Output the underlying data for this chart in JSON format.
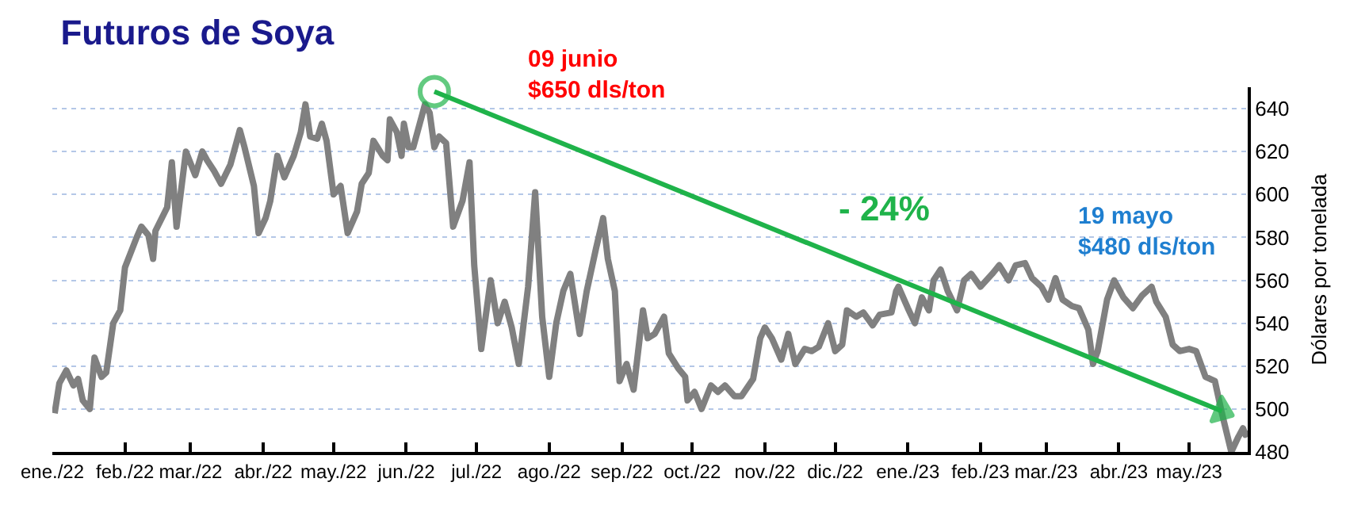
{
  "chart_data": {
    "type": "line",
    "title": "Futuros de Soya",
    "ylabel": "Dólares por tonelada",
    "annotations": [
      "09 junio\n$650 dls/ton",
      "- 24%",
      "19 mayo\n$480 dls/ton"
    ],
    "x": [
      "2022-01-02",
      "2022-01-04",
      "2022-01-07",
      "2022-01-10",
      "2022-01-12",
      "2022-01-14",
      "2022-01-17",
      "2022-01-19",
      "2022-01-22",
      "2022-01-24",
      "2022-01-27",
      "2022-01-30",
      "2022-02-01",
      "2022-02-06",
      "2022-02-08",
      "2022-02-11",
      "2022-02-13",
      "2022-02-14",
      "2022-02-19",
      "2022-02-21",
      "2022-02-23",
      "2022-02-27",
      "2022-03-03",
      "2022-03-06",
      "2022-03-08",
      "2022-03-11",
      "2022-03-14",
      "2022-03-18",
      "2022-03-22",
      "2022-03-24",
      "2022-03-28",
      "2022-03-30",
      "2022-04-02",
      "2022-04-04",
      "2022-04-07",
      "2022-04-10",
      "2022-04-14",
      "2022-04-17",
      "2022-04-19",
      "2022-04-21",
      "2022-04-24",
      "2022-04-26",
      "2022-04-28",
      "2022-05-01",
      "2022-05-04",
      "2022-05-07",
      "2022-05-11",
      "2022-05-13",
      "2022-05-16",
      "2022-05-18",
      "2022-05-22",
      "2022-05-24",
      "2022-05-25",
      "2022-05-28",
      "2022-05-30",
      "2022-05-31",
      "2022-06-02",
      "2022-06-04",
      "2022-06-09",
      "2022-06-11",
      "2022-06-13",
      "2022-06-15",
      "2022-06-18",
      "2022-06-21",
      "2022-06-25",
      "2022-06-28",
      "2022-06-30",
      "2022-07-03",
      "2022-07-07",
      "2022-07-10",
      "2022-07-13",
      "2022-07-16",
      "2022-07-19",
      "2022-07-23",
      "2022-07-26",
      "2022-07-29",
      "2022-08-01",
      "2022-08-04",
      "2022-08-07",
      "2022-08-10",
      "2022-08-14",
      "2022-08-17",
      "2022-08-21",
      "2022-08-24",
      "2022-08-26",
      "2022-08-29",
      "2022-08-31",
      "2022-09-03",
      "2022-09-06",
      "2022-09-10",
      "2022-09-12",
      "2022-09-15",
      "2022-09-19",
      "2022-09-21",
      "2022-09-25",
      "2022-09-28",
      "2022-09-29",
      "2022-10-02",
      "2022-10-05",
      "2022-10-09",
      "2022-10-12",
      "2022-10-15",
      "2022-10-19",
      "2022-10-22",
      "2022-10-27",
      "2022-10-30",
      "2022-11-01",
      "2022-11-04",
      "2022-11-08",
      "2022-11-11",
      "2022-11-14",
      "2022-11-18",
      "2022-11-21",
      "2022-11-24",
      "2022-11-28",
      "2022-12-01",
      "2022-12-04",
      "2022-12-06",
      "2022-12-10",
      "2022-12-13",
      "2022-12-17",
      "2022-12-20",
      "2022-12-25",
      "2022-12-27",
      "2022-12-28",
      "2023-01-01",
      "2023-01-04",
      "2023-01-07",
      "2023-01-10",
      "2023-01-12",
      "2023-01-15",
      "2023-01-18",
      "2023-01-22",
      "2023-01-25",
      "2023-01-28",
      "2023-02-01",
      "2023-02-06",
      "2023-02-09",
      "2023-02-13",
      "2023-02-16",
      "2023-02-20",
      "2023-02-23",
      "2023-02-27",
      "2023-03-02",
      "2023-03-05",
      "2023-03-08",
      "2023-03-12",
      "2023-03-15",
      "2023-03-19",
      "2023-03-21",
      "2023-03-23",
      "2023-03-27",
      "2023-03-30",
      "2023-04-03",
      "2023-04-07",
      "2023-04-11",
      "2023-04-15",
      "2023-04-17",
      "2023-04-21",
      "2023-04-24",
      "2023-04-27",
      "2023-05-01",
      "2023-05-04",
      "2023-05-08",
      "2023-05-12",
      "2023-05-15",
      "2023-05-19",
      "2023-05-22",
      "2023-05-24",
      "2023-05-25",
      "2023-05-26"
    ],
    "series": [
      {
        "color": "#808080",
        "values": [
          498,
          512,
          518,
          511,
          514,
          504,
          500,
          524,
          515,
          517,
          540,
          546,
          566,
          580,
          585,
          581,
          570,
          583,
          594,
          615,
          585,
          620,
          609,
          620,
          616,
          611,
          605,
          614,
          630,
          622,
          604,
          582,
          589,
          597,
          618,
          608,
          618,
          629,
          642,
          627,
          626,
          633,
          625,
          600,
          604,
          582,
          592,
          605,
          610,
          625,
          618,
          616,
          635,
          629,
          618,
          633,
          622,
          622,
          642,
          638,
          622,
          627,
          624,
          585,
          597,
          615,
          567,
          528,
          560,
          540,
          550,
          538,
          521,
          557,
          601,
          543,
          515,
          540,
          555,
          563,
          535,
          555,
          575,
          589,
          570,
          555,
          513,
          521,
          509,
          546,
          533,
          535,
          543,
          526,
          519,
          515,
          504,
          508,
          500,
          511,
          508,
          511,
          506,
          506,
          514,
          533,
          538,
          533,
          523,
          535,
          521,
          528,
          527,
          529,
          540,
          527,
          530,
          546,
          543,
          545,
          539,
          544,
          545,
          555,
          557,
          547,
          540,
          552,
          546,
          560,
          565,
          555,
          546,
          560,
          563,
          557,
          563,
          567,
          560,
          567,
          568,
          561,
          557,
          551,
          561,
          551,
          548,
          547,
          537,
          521,
          527,
          551,
          560,
          552,
          547,
          553,
          557,
          550,
          543,
          530,
          527,
          528,
          527,
          515,
          513,
          498,
          480,
          487,
          491,
          488,
          490
        ]
      },
      {
        "type": "line",
        "color": "#1fb34a",
        "marker": "circle",
        "x": [
          "2022-06-13",
          "2023-05-15"
        ],
        "values": [
          648,
          499
        ]
      }
    ],
    "xlim": [
      "2022-01-01",
      "2023-05-26"
    ],
    "xticks": [
      {
        "value": "2022-01-01",
        "label": "ene./22"
      },
      {
        "value": "2022-02-01",
        "label": "feb./22"
      },
      {
        "value": "2022-03-01",
        "label": "mar./22"
      },
      {
        "value": "2022-04-01",
        "label": "abr./22"
      },
      {
        "value": "2022-05-01",
        "label": "may./22"
      },
      {
        "value": "2022-06-01",
        "label": "jun./22"
      },
      {
        "value": "2022-07-01",
        "label": "jul./22"
      },
      {
        "value": "2022-08-01",
        "label": "ago./22"
      },
      {
        "value": "2022-09-01",
        "label": "sep./22"
      },
      {
        "value": "2022-10-01",
        "label": "oct./22"
      },
      {
        "value": "2022-11-01",
        "label": "nov./22"
      },
      {
        "value": "2022-12-01",
        "label": "dic./22"
      },
      {
        "value": "2023-01-01",
        "label": "ene./23"
      },
      {
        "value": "2023-02-01",
        "label": "feb./23"
      },
      {
        "value": "2023-03-01",
        "label": "mar./23"
      },
      {
        "value": "2023-04-01",
        "label": "abr./23"
      },
      {
        "value": "2023-05-01",
        "label": "may./23"
      }
    ],
    "ylim": [
      480,
      650
    ],
    "yticks": [
      480,
      500,
      520,
      540,
      560,
      580,
      600,
      620,
      640
    ],
    "grid": "y",
    "marker": "none",
    "line_style": "solid"
  }
}
